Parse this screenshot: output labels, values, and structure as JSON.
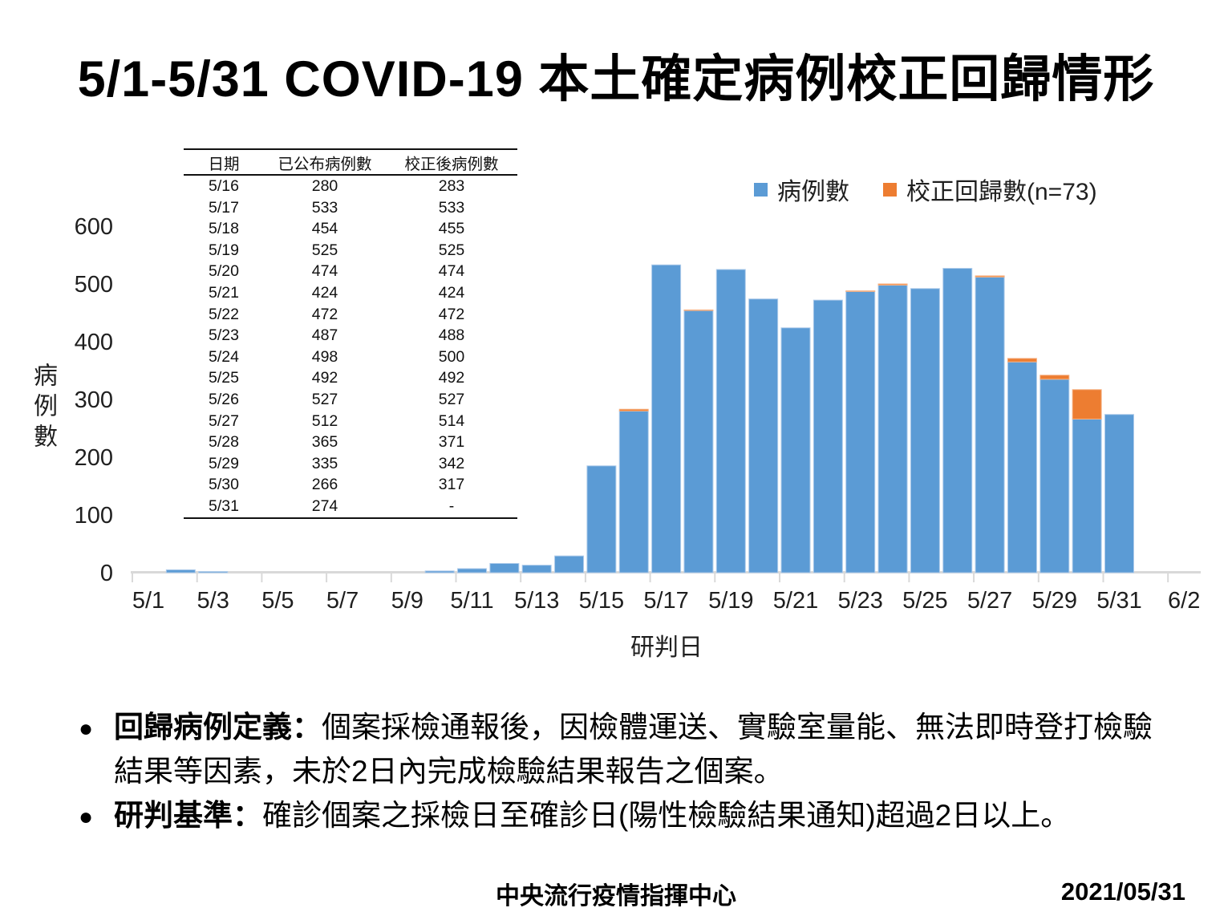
{
  "slide": {
    "title": "5/1-5/31 COVID-19 本土確定病例校正回歸情形",
    "footer_org": "中央流行疫情指揮中心",
    "footer_date": "2021/05/31"
  },
  "bullet_glyph": "●",
  "table": {
    "headers": [
      "日期",
      "已公布病例數",
      "校正後病例數"
    ],
    "rows": [
      [
        "5/16",
        "280",
        "283"
      ],
      [
        "5/17",
        "533",
        "533"
      ],
      [
        "5/18",
        "454",
        "455"
      ],
      [
        "5/19",
        "525",
        "525"
      ],
      [
        "5/20",
        "474",
        "474"
      ],
      [
        "5/21",
        "424",
        "424"
      ],
      [
        "5/22",
        "472",
        "472"
      ],
      [
        "5/23",
        "487",
        "488"
      ],
      [
        "5/24",
        "498",
        "500"
      ],
      [
        "5/25",
        "492",
        "492"
      ],
      [
        "5/26",
        "527",
        "527"
      ],
      [
        "5/27",
        "512",
        "514"
      ],
      [
        "5/28",
        "365",
        "371"
      ],
      [
        "5/29",
        "335",
        "342"
      ],
      [
        "5/30",
        "266",
        "317"
      ],
      [
        "5/31",
        "274",
        "-"
      ]
    ]
  },
  "legend": [
    {
      "label": "病例數",
      "color": "#5B9BD5"
    },
    {
      "label": "校正回歸數(n=73)",
      "color": "#ED7D31"
    }
  ],
  "chart_data": {
    "type": "bar",
    "stacked": true,
    "title": "",
    "xlabel": "研判日",
    "ylabel": "病例數",
    "ylim": [
      0,
      600
    ],
    "yticks": [
      0,
      100,
      200,
      300,
      400,
      500,
      600
    ],
    "grid": false,
    "legend_position": "top-right",
    "categories": [
      "5/1",
      "5/2",
      "5/3",
      "5/4",
      "5/5",
      "5/6",
      "5/7",
      "5/8",
      "5/9",
      "5/10",
      "5/11",
      "5/12",
      "5/13",
      "5/14",
      "5/15",
      "5/16",
      "5/17",
      "5/18",
      "5/19",
      "5/20",
      "5/21",
      "5/22",
      "5/23",
      "5/24",
      "5/25",
      "5/26",
      "5/27",
      "5/28",
      "5/29",
      "5/30",
      "5/31",
      "6/1",
      "6/2"
    ],
    "xtick_labels": [
      "5/1",
      "5/3",
      "5/5",
      "5/7",
      "5/9",
      "5/11",
      "5/13",
      "5/15",
      "5/17",
      "5/19",
      "5/21",
      "5/23",
      "5/25",
      "5/27",
      "5/29",
      "5/31",
      "6/2"
    ],
    "series": [
      {
        "name": "病例數",
        "color": "#5B9BD5",
        "edge_color": "#AECBEA",
        "values": [
          0,
          5,
          2,
          0,
          0,
          0,
          0,
          0,
          0,
          3,
          7,
          16,
          13,
          29,
          185,
          280,
          533,
          454,
          525,
          474,
          424,
          472,
          487,
          498,
          492,
          527,
          512,
          365,
          335,
          266,
          274,
          0,
          0
        ]
      },
      {
        "name": "校正回歸數(n=73)",
        "color": "#ED7D31",
        "edge_color": "#F5B183",
        "values": [
          0,
          0,
          0,
          0,
          0,
          0,
          0,
          0,
          0,
          0,
          0,
          0,
          0,
          0,
          0,
          3,
          0,
          1,
          0,
          0,
          0,
          0,
          1,
          2,
          0,
          0,
          2,
          6,
          7,
          51,
          0,
          0,
          0
        ]
      }
    ],
    "axis_color": "#D9D9D9",
    "tick_text_color": "#1f1f1f"
  },
  "notes": [
    {
      "label": "回歸病例定義：",
      "text": "個案採檢通報後，因檢體運送、實驗室量能、無法即時登打檢驗結果等因素，未於2日內完成檢驗結果報告之個案。"
    },
    {
      "label": "研判基準：",
      "text": "確診個案之採檢日至確診日(陽性檢驗結果通知)超過2日以上。"
    }
  ]
}
